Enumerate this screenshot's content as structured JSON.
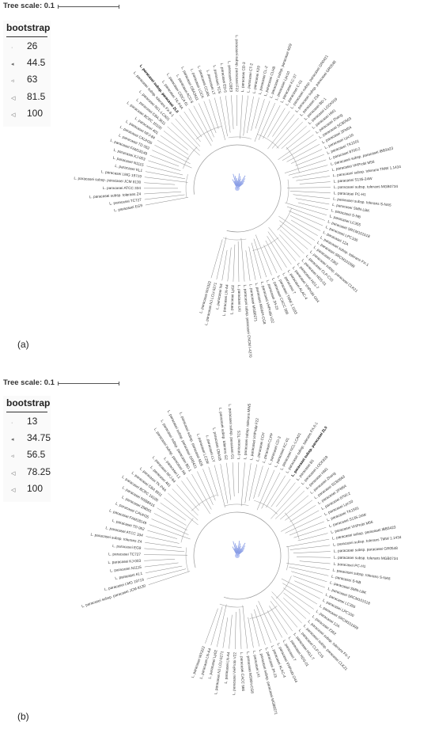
{
  "panels": [
    {
      "tag": "(a)",
      "tree_scale_label": "Tree scale: 0.1",
      "legend_title": "bootstrap",
      "legend_values": [
        "26",
        "44.5",
        "63",
        "81.5",
        "100"
      ],
      "highlight_leaf": "L. paracasei subsp. paracasei ZL0",
      "leaves": [
        "L. paracasei EG9",
        "L. paracasei TC727",
        "L. paracasei subsp. tolerans Z4",
        "L. paracasei ATCC 334",
        "L. paracasei subsp. paracasei JCM 8130",
        "L. paracasei LMG 19719",
        "L. paracasei KL1",
        "L. paracasei N1115",
        "L. paracasei KJ-003",
        "L. paracasei FAM18149",
        "L. paracasei TD 062",
        "L. paracasei CAUH35",
        "L. paracasei NFJ-84",
        "L. paracasei 401",
        "L. paracasei BCRC 16100",
        "L. paracasei CBA 3611",
        "L. paracasei NCL-LCA01",
        "L. paracasei subsp. tolerans FX-6-1",
        "L. paracasei subsp. paracasei ZL0",
        "L. paracasei TK-P4A",
        "L. paracasei CIDCA 61",
        "L. paracasei ACD 6",
        "L. paracasei CBA3611",
        "L. paracasei LOCK",
        "L. paracasei CCAN",
        "L. paracasei LT",
        "L. paracasei TCS",
        "L. paracasei ED-5",
        "L. paracasei CBE3",
        "L. paracasei subsp. paracasei F22",
        "L. paracasei CD-3",
        "L. paracasei CT-2",
        "L. paracasei K29",
        "L. paracasei CL-2",
        "L. paracasei CLH8",
        "L. paracasei subsp. paracasei M29",
        "L. paracasei Lpc10",
        "L. paracasei KC 07",
        "L. paracasei C-01",
        "L. paracasei subsp. paracasei GR0421",
        "L. paracasei subsp. paracasei GR0548",
        "L. paracasei 23A",
        "L. paracasei BD-1",
        "L. paracasei LOCK919",
        "L. paracasei HM1",
        "L. paracasei Zhang",
        "L. paracasei SCB0563",
        "L. paracasei ZFM54",
        "L. paracasei Lpc10",
        "L. paracasei TK1501",
        "L. paracasei 8700:2",
        "L. paracasei subsp. paracasei IBB3423",
        "L. paracasei VHProbi M56",
        "L. paracasei subsp. tolerans TMW 1.1434",
        "L. paracasei S135-24W",
        "L. paracasei subsp. tolerans MGB0734",
        "L. paracasei PC-H1",
        "L. paracasei subsp. tolerans S-NA5",
        "L. paracasei SMN-LBK",
        "L. paracasei S-NB",
        "L. paracasei LC355",
        "L. paracasei SRCM101518",
        "L. paracasei LPC100",
        "L. paracasei 12A",
        "L. paracasei subsp. tolerans FX-1",
        "L. paracasei SRCM101599",
        "L. paracasei 2362",
        "L. paracasei subsp. paracasei CLK21",
        "L. paracasei CLP-C15",
        "L. paracasei HDS-01",
        "L. paracasei HG1-7",
        "L. paracasei VHProbi O44",
        "L. paracasei ALAC-4",
        "L. paracasei 7",
        "L. paracasei TMW 1.1183",
        "L. paracasei CACC 566",
        "L. paracasei JH-23",
        "L. paracasei VHProbi V22",
        "L. paracasei MSWH-CG8",
        "L. paracasei MGB0271",
        "L. paracasei subsp. paracasei CNCM I-4270",
        "L. paracasei LKI",
        "L. paracasei Lp02",
        "L. paracasei LN-A4",
        "L. paracasei N4",
        "L. paracasei NJ LCU-5271",
        "L. paracasei WX322"
      ]
    },
    {
      "tag": "(b)",
      "tree_scale_label": "Tree scale: 0.1",
      "legend_title": "bootstrap",
      "legend_values": [
        "13",
        "34.75",
        "56.5",
        "78.25",
        "100"
      ],
      "highlight_leaf": "L. paracasei subsp. paracasei ZL0",
      "leaves": [
        "L. paracasei subsp. paracasei JCM 8130",
        "L. paracasei LMG 19719",
        "L. paracasei KL1",
        "L. paracasei N1115",
        "L. paracasei KJ-003",
        "L. paracasei TC727",
        "L. paracasei EG9",
        "L. paracasei subsp. tolerans Z4",
        "L. paracasei ATCC 334",
        "L. paracasei TD 062",
        "L. paracasei FAM18149",
        "L. paracasei CAUH35",
        "L. paracasei ZM001",
        "L. paracasei NSB8415",
        "L. paracasei BCRC 16100",
        "L. paracasei CBA 3611",
        "L. paracasei TK-P4A",
        "L. paracasei 401",
        "L. paracasei NFJ-84",
        "L. paracasei L1",
        "L. paracasei subsp. paracasei R6",
        "L. paracasei subsp. paracasei BD-1",
        "L. paracasei subsp. paracasei GR0421",
        "L. paracasei subsp. paracasei M29",
        "L. paracasei LC2W",
        "L. paracasei LLY",
        "L. paracasei CBA1B",
        "L. paracasei subsp. tolerans G2",
        "L. paracasei subsp. paracasei G1",
        "L. paracasei TCS",
        "L. paracasei subsp. tolerans MW5",
        "L. paracasei VHProbi F22",
        "L. paracasei CCH",
        "L. paracasei CLPP",
        "L. paracasei CD-3",
        "L. paracasei KC-01",
        "L. paracasei NCL-LCA01",
        "L. paracasei subsp. tolerans FX-6-1",
        "L. paracasei subsp. paracasei ZL0",
        "L. paracasei B1",
        "L. paracasei LOCK919",
        "L. paracasei HM1",
        "L. paracasei Zhang",
        "L. paracasei SCB0563",
        "L. paracasei ZFM54",
        "L. paracasei 8700:2",
        "L. paracasei Lpc10",
        "L. paracasei TK1501",
        "L. paracasei S135-24W",
        "L. paracasei VHProbi M56",
        "L. paracasei subsp. paracasei IBB3423",
        "L. paracasei subsp. tolerans TMW 1.1434",
        "L. paracasei subsp. paracasei GR0548",
        "L. paracasei subsp. tolerans MGB0734",
        "L. paracasei PC-H1",
        "L. paracasei subsp. tolerans S-NA5",
        "L. paracasei S-NB",
        "L. paracasei SMN-LBK",
        "L. paracasei SRCM101518",
        "L. paracasei LC355",
        "L. paracasei LPC100",
        "L. paracasei SRCM101599",
        "L. paracasei 12A",
        "L. paracasei 2362",
        "L. paracasei subsp. tolerans FX-1",
        "L. paracasei subsp. paracasei CLK21",
        "L. paracasei CLP-C15",
        "L. paracasei HG1-7",
        "L. paracasei HDS-01",
        "L. paracasei 7",
        "L. paracasei VHProbi O44",
        "L. paracasei ALAC-4",
        "L. paracasei JH-23",
        "L. paracasei subsp. paracasei MGB0271",
        "L. paracasei LKI",
        "L. paracasei MSWH-CG8",
        "L. paracasei CACC 566",
        "L. paracasei VHProbi V22",
        "L. paracasei LN-A4",
        "L. paracasei NJ LCU-5271",
        "L. paracasei Lp02",
        "L. paracasei LN-A4",
        "L. paracasei WX322"
      ]
    }
  ]
}
